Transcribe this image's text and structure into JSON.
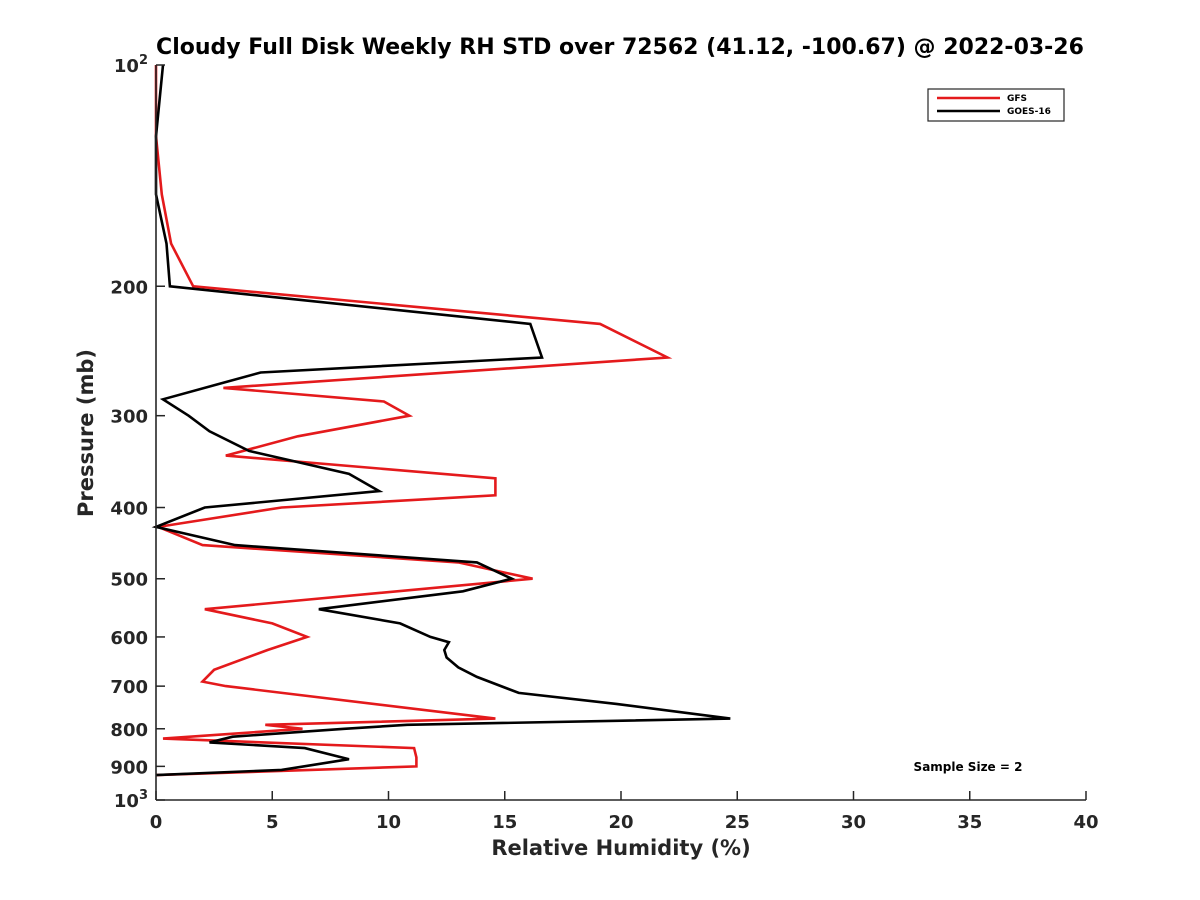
{
  "chart_data": {
    "type": "line",
    "title": "Cloudy Full Disk Weekly RH STD over 72562 (41.12, -100.67) @ 2022-03-26",
    "xlabel": "Relative Humidity (%)",
    "ylabel": "Pressure (mb)",
    "xlim": [
      0,
      40
    ],
    "ylim": [
      100,
      1000
    ],
    "y_scale": "log",
    "y_reversed": true,
    "grid": false,
    "legend_position": "top-right",
    "x_ticks": [
      "0",
      "5",
      "10",
      "15",
      "20",
      "25",
      "30",
      "35",
      "40"
    ],
    "y_ticks": [
      {
        "value": 100,
        "base": "10",
        "exp": "2"
      },
      {
        "value": 200,
        "label": "200"
      },
      {
        "value": 300,
        "label": "300"
      },
      {
        "value": 400,
        "label": "400"
      },
      {
        "value": 500,
        "label": "500"
      },
      {
        "value": 600,
        "label": "600"
      },
      {
        "value": 700,
        "label": "700"
      },
      {
        "value": 800,
        "label": "800"
      },
      {
        "value": 900,
        "label": "900"
      },
      {
        "value": 1000,
        "base": "10",
        "exp": "3"
      }
    ],
    "annotation": "Sample Size = 2",
    "series": [
      {
        "name": "GFS",
        "color": "#e41a1c",
        "points": [
          [
            0.0,
            100
          ],
          [
            0.0,
            125
          ],
          [
            0.25,
            150
          ],
          [
            0.65,
            175
          ],
          [
            1.6,
            200
          ],
          [
            19.1,
            225
          ],
          [
            22.0,
            250
          ],
          [
            2.9,
            275
          ],
          [
            9.8,
            287
          ],
          [
            10.9,
            300
          ],
          [
            6.1,
            320
          ],
          [
            3.0,
            340
          ],
          [
            14.6,
            365
          ],
          [
            14.6,
            385
          ],
          [
            5.4,
            400
          ],
          [
            0.1,
            425
          ],
          [
            2.0,
            450
          ],
          [
            13.0,
            475
          ],
          [
            16.2,
            500
          ],
          [
            2.1,
            550
          ],
          [
            5.0,
            575
          ],
          [
            6.5,
            600
          ],
          [
            4.8,
            625
          ],
          [
            2.5,
            665
          ],
          [
            2.0,
            690
          ],
          [
            3.0,
            700
          ],
          [
            14.6,
            775
          ],
          [
            4.7,
            790
          ],
          [
            6.3,
            800
          ],
          [
            0.3,
            825
          ],
          [
            11.1,
            850
          ],
          [
            11.2,
            875
          ],
          [
            11.2,
            900
          ],
          [
            0.0,
            925
          ]
        ]
      },
      {
        "name": "GOES-16",
        "color": "#000000",
        "points": [
          [
            0.3,
            100
          ],
          [
            0.0,
            125
          ],
          [
            0.0,
            150
          ],
          [
            0.45,
            175
          ],
          [
            0.6,
            200
          ],
          [
            16.1,
            225
          ],
          [
            16.6,
            250
          ],
          [
            4.5,
            262
          ],
          [
            0.3,
            285
          ],
          [
            1.4,
            300
          ],
          [
            2.3,
            315
          ],
          [
            4.0,
            335
          ],
          [
            8.3,
            360
          ],
          [
            9.6,
            380
          ],
          [
            2.1,
            400
          ],
          [
            0.0,
            425
          ],
          [
            3.4,
            450
          ],
          [
            13.8,
            475
          ],
          [
            15.3,
            500
          ],
          [
            13.2,
            520
          ],
          [
            7.0,
            550
          ],
          [
            10.5,
            575
          ],
          [
            11.8,
            600
          ],
          [
            12.6,
            610
          ],
          [
            12.4,
            625
          ],
          [
            12.5,
            640
          ],
          [
            13.0,
            660
          ],
          [
            13.8,
            680
          ],
          [
            15.6,
            715
          ],
          [
            19.8,
            740
          ],
          [
            24.7,
            775
          ],
          [
            10.8,
            790
          ],
          [
            8.1,
            800
          ],
          [
            3.3,
            820
          ],
          [
            2.3,
            835
          ],
          [
            6.4,
            850
          ],
          [
            8.3,
            880
          ],
          [
            5.4,
            910
          ],
          [
            0.0,
            925
          ]
        ]
      }
    ]
  }
}
